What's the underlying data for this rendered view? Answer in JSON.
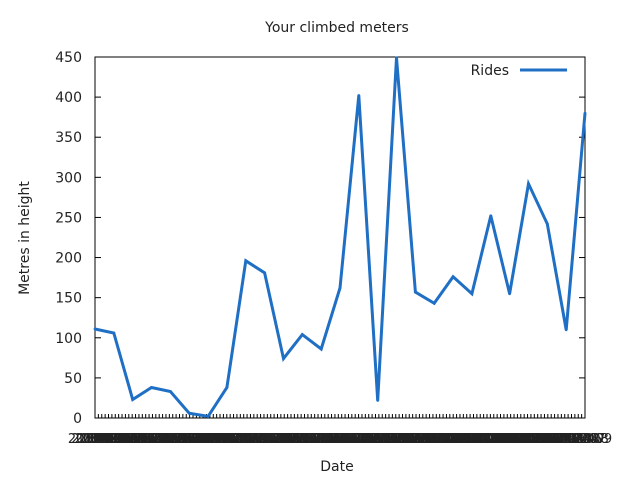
{
  "chart_data": {
    "type": "line",
    "title": "Your climbed meters",
    "xlabel": "Date",
    "ylabel": "Metres in height",
    "ylim": [
      0,
      450
    ],
    "yticks": [
      "0",
      "50",
      "100",
      "150",
      "200",
      "250",
      "300",
      "350",
      "400",
      "450"
    ],
    "x_tick_labels": [
      "2011-08",
      "2011-09",
      "2011-10",
      "2011-11",
      "2011-12",
      "2012-01",
      "2012-02",
      "2012-03",
      "2012-04",
      "2012-05",
      "2012-06",
      "2012-07",
      "2012-08",
      "2012-09",
      "2012-10",
      "2012-11",
      "2012-12",
      "2013-01",
      "2013-02",
      "2013-03",
      "2013-04",
      "2013-05",
      "2013-06",
      "2013-07",
      "2013-08",
      "2013-09",
      "2013-10",
      "2013-11",
      "2013-12",
      "2014-01",
      "2014-02",
      "2014-03",
      "2014-04",
      "2014-05",
      "2014-06",
      "2014-07",
      "2014-08",
      "2014-09",
      "2014-10",
      "2014-11",
      "2014-12",
      "2015-01",
      "2015-02",
      "2015-03",
      "2015-04",
      "2015-05",
      "2015-06",
      "2015-07",
      "2015-08",
      "2015-09",
      "2015-10",
      "2015-11",
      "2015-12",
      "2016-01",
      "2016-02",
      "2016-03",
      "2016-04",
      "2016-05",
      "2016-06",
      "2016-07",
      "2016-08",
      "2016-09",
      "2016-10",
      "2016-11",
      "2016-12",
      "2017-01",
      "2017-02",
      "2017-03",
      "2017-04",
      "2017-05",
      "2017-06",
      "2017-07",
      "2017-08",
      "2017-09",
      "2017-10",
      "2017-11",
      "2017-12",
      "2018-01",
      "2018-02",
      "2018-03",
      "2018-04",
      "2018-05",
      "2018-06",
      "2018-07",
      "2018-08",
      "2018-09",
      "2018-10",
      "2018-11",
      "2018-12",
      "2019-01",
      "2019-02",
      "2019-03",
      "2019-04",
      "2019-05",
      "2019-06",
      "2019-07",
      "2019-08",
      "2019-09",
      "2019-10",
      "2019-11",
      "2019-12",
      "2020-01",
      "2020-02",
      "2020-03",
      "2020-04",
      "2020-05",
      "2020-06",
      "2020-07",
      "2020-08",
      "2020-09",
      "2020-10",
      "2020-11",
      "2020-12",
      "2021-01",
      "2021-02",
      "2021-03",
      "2021-04",
      "2021-05",
      "2021-06",
      "2021-07",
      "2021-08",
      "2021-09",
      "2021-10",
      "2021-11",
      "2021-12",
      "2022-01",
      "2022-02",
      "2022-03",
      "2022-04",
      "2022-05",
      "2022-06",
      "2022-07",
      "2022-08",
      "2022-09",
      "2022-10",
      "2022-11",
      "2022-12",
      "2023-01",
      "2023-02",
      "2023-03",
      "2023-04",
      "2023-05",
      "2023-06",
      "2023-07",
      "2023-08",
      "2023-09"
    ],
    "x": [
      "2011-08",
      "2011-09",
      "2011-10",
      "2011-11",
      "2011-12",
      "2012-01",
      "2012-02",
      "2012-03",
      "2012-04",
      "2012-05",
      "2012-06",
      "2012-07",
      "2012-08",
      "2012-09",
      "2012-10",
      "2012-11",
      "2012-12",
      "2013-01",
      "2013-02",
      "2013-03",
      "2013-04",
      "2013-05",
      "2013-06",
      "2013-07",
      "2013-08",
      "2013-09",
      "2013-10"
    ],
    "series": [
      {
        "name": "Rides",
        "color": "#1f6fc5",
        "values": [
          111,
          106,
          23,
          38,
          33,
          6,
          2,
          38,
          196,
          181,
          74,
          104,
          86,
          162,
          402,
          22,
          449,
          157,
          143,
          176,
          155,
          252,
          155,
          292,
          242,
          110,
          380
        ]
      }
    ],
    "legend_position": "top-right",
    "grid": false
  }
}
